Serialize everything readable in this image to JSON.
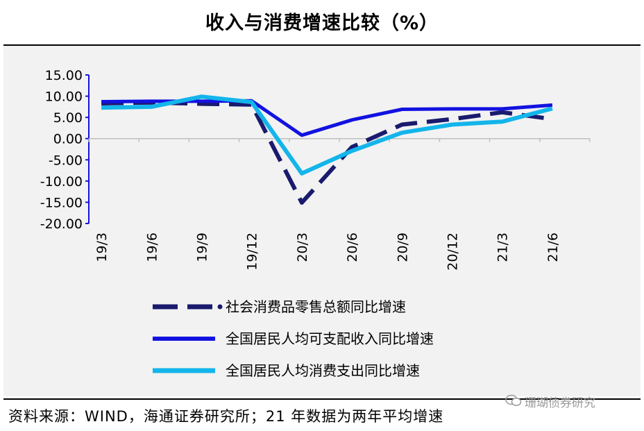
{
  "title": "收入与消费增速比较（%）",
  "source": "资料来源：WIND，海通证券研究所；21 年数据为两年平均增速",
  "watermark": "珊瑚债券研究",
  "colors": {
    "retail": "#1a1a6e",
    "income": "#1212e0",
    "consumption": "#13b5ea",
    "axis": "#1212e0",
    "panel": "#f2f2f2"
  },
  "chart_data": {
    "type": "line",
    "title": "收入与消费增速比较（%）",
    "xlabel": "",
    "ylabel": "",
    "ylim": [
      -20,
      15
    ],
    "y_ticks": [
      "15.00",
      "10.00",
      "5.00",
      "0.00",
      "-5.00",
      "-10.00",
      "-15.00",
      "-20.00"
    ],
    "x": [
      "19/3",
      "19/6",
      "19/9",
      "19/12",
      "20/3",
      "20/6",
      "20/9",
      "20/12",
      "21/3",
      "21/6"
    ],
    "series": [
      {
        "name": "社会消费品零售总额同比增速",
        "style": "dashed",
        "values": [
          8.3,
          8.5,
          8.2,
          8.0,
          -15.1,
          -2.0,
          3.3,
          4.6,
          6.2,
          4.6
        ]
      },
      {
        "name": "全国居民人均可支配收入同比增速",
        "style": "solid",
        "values": [
          8.7,
          8.8,
          8.8,
          8.9,
          0.8,
          4.4,
          6.9,
          7.0,
          7.0,
          7.9
        ]
      },
      {
        "name": "全国居民人均消费支出同比增速",
        "style": "solid",
        "values": [
          7.3,
          7.5,
          9.9,
          8.6,
          -8.2,
          -2.9,
          1.4,
          3.3,
          4.0,
          7.1
        ]
      }
    ]
  }
}
